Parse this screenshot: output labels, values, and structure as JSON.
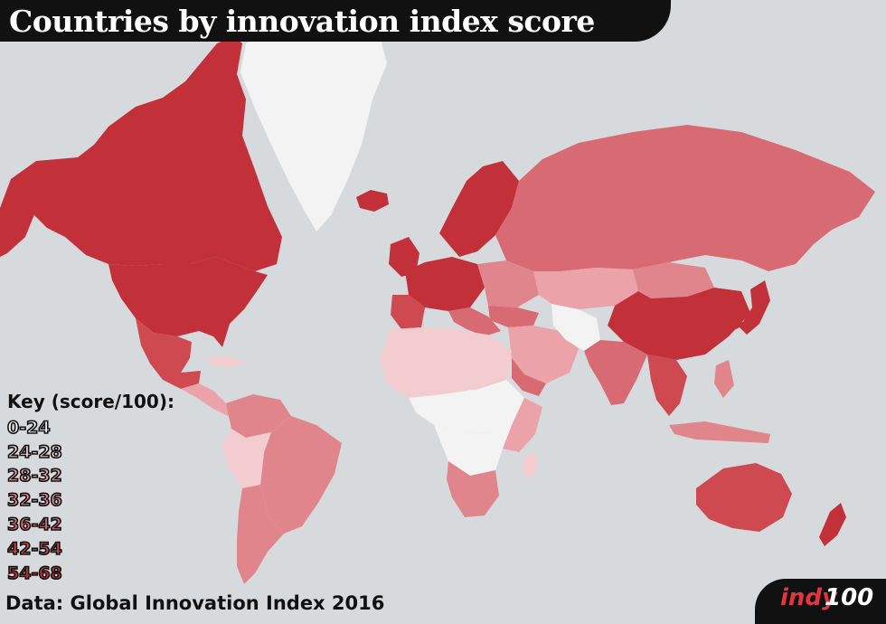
{
  "title": "Countries by innovation index score",
  "legend": {
    "heading": "Key (score/100):",
    "items": [
      {
        "label": "0-24",
        "color": "#f3f3f3"
      },
      {
        "label": "24-28",
        "color": "#f2cccf"
      },
      {
        "label": "28-32",
        "color": "#eba2a8"
      },
      {
        "label": "32-36",
        "color": "#e0858c"
      },
      {
        "label": "36-42",
        "color": "#d76a72"
      },
      {
        "label": "42-54",
        "color": "#cf4951"
      },
      {
        "label": "54-68",
        "color": "#c2303a"
      }
    ]
  },
  "source": "Data: Global Innovation Index 2016",
  "brand": {
    "part1": "indy",
    "part2": "100"
  },
  "colors": {
    "ocean": "#d6dadd",
    "banner": "#111111"
  }
}
